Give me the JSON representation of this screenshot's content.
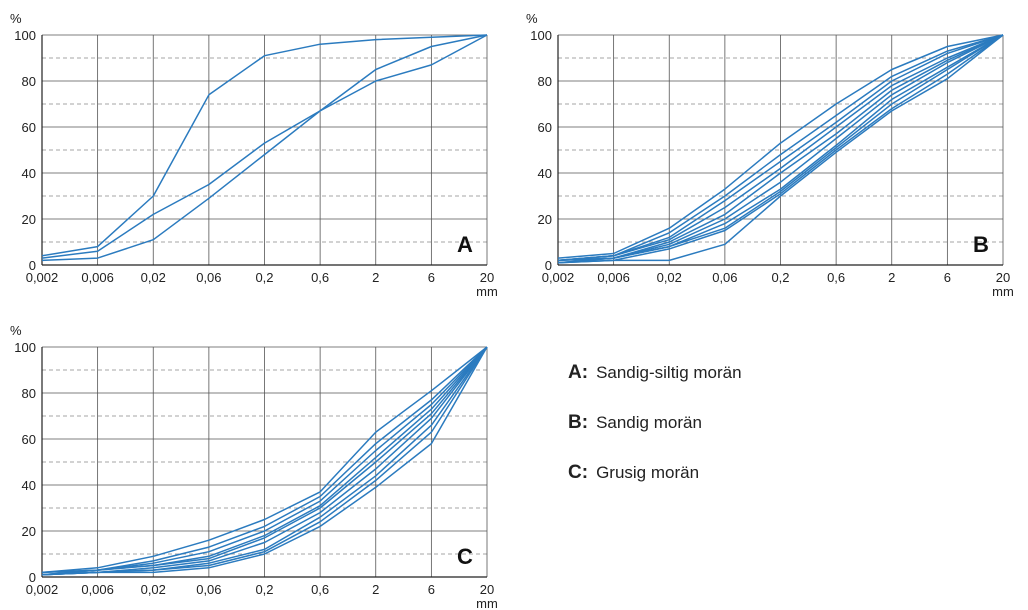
{
  "chart_data": [
    {
      "type": "line",
      "panel_label": "A",
      "categories": [
        "0,002",
        "0,006",
        "0,02",
        "0,06",
        "0,2",
        "0,6",
        "2",
        "6",
        "20"
      ],
      "y_unit": "%",
      "x_unit": "mm",
      "ylim": [
        0,
        100
      ],
      "y_ticks": [
        "0",
        "20",
        "40",
        "60",
        "80",
        "100"
      ],
      "grid": true,
      "series": [
        {
          "values": [
            4,
            8,
            30,
            74,
            91,
            96,
            98,
            99,
            100
          ]
        },
        {
          "values": [
            3,
            6,
            22,
            35,
            53,
            67,
            85,
            95,
            100
          ]
        },
        {
          "values": [
            2,
            3,
            11,
            29,
            48,
            67,
            80,
            87,
            100
          ]
        }
      ]
    },
    {
      "type": "line",
      "panel_label": "B",
      "categories": [
        "0,002",
        "0,006",
        "0,02",
        "0,06",
        "0,2",
        "0,6",
        "2",
        "6",
        "20"
      ],
      "y_unit": "%",
      "x_unit": "mm",
      "ylim": [
        0,
        100
      ],
      "y_ticks": [
        "0",
        "20",
        "40",
        "60",
        "80",
        "100"
      ],
      "grid": true,
      "series": [
        {
          "values": [
            3,
            5,
            16,
            33,
            53,
            70,
            85,
            95,
            100
          ]
        },
        {
          "values": [
            2,
            4,
            14,
            30,
            48,
            65,
            82,
            93,
            100
          ]
        },
        {
          "values": [
            2,
            4,
            12,
            28,
            45,
            62,
            80,
            92,
            100
          ]
        },
        {
          "values": [
            2,
            4,
            11,
            25,
            42,
            60,
            78,
            90,
            100
          ]
        },
        {
          "values": [
            2,
            3,
            10,
            22,
            40,
            57,
            76,
            89,
            100
          ]
        },
        {
          "values": [
            2,
            3,
            9,
            20,
            36,
            55,
            74,
            88,
            100
          ]
        },
        {
          "values": [
            1,
            3,
            8,
            18,
            33,
            52,
            72,
            86,
            100
          ]
        },
        {
          "values": [
            1,
            3,
            8,
            16,
            32,
            51,
            70,
            85,
            100
          ]
        },
        {
          "values": [
            1,
            2,
            7,
            15,
            31,
            50,
            68,
            83,
            100
          ]
        },
        {
          "values": [
            1,
            2,
            2,
            9,
            30,
            49,
            67,
            81,
            100
          ]
        }
      ]
    },
    {
      "type": "line",
      "panel_label": "C",
      "categories": [
        "0,002",
        "0,006",
        "0,02",
        "0,06",
        "0,2",
        "0,6",
        "2",
        "6",
        "20"
      ],
      "y_unit": "%",
      "x_unit": "mm",
      "ylim": [
        0,
        100
      ],
      "y_ticks": [
        "0",
        "20",
        "40",
        "60",
        "80",
        "100"
      ],
      "grid": true,
      "series": [
        {
          "values": [
            2,
            4,
            9,
            16,
            25,
            37,
            63,
            81,
            100
          ]
        },
        {
          "values": [
            2,
            3,
            7,
            13,
            22,
            35,
            58,
            77,
            100
          ]
        },
        {
          "values": [
            2,
            3,
            6,
            11,
            20,
            33,
            55,
            75,
            100
          ]
        },
        {
          "values": [
            1,
            3,
            5,
            9,
            18,
            31,
            52,
            73,
            100
          ]
        },
        {
          "values": [
            1,
            3,
            5,
            8,
            17,
            30,
            50,
            71,
            100
          ]
        },
        {
          "values": [
            1,
            2,
            4,
            7,
            15,
            28,
            47,
            69,
            100
          ]
        },
        {
          "values": [
            1,
            2,
            3,
            6,
            12,
            26,
            44,
            66,
            100
          ]
        },
        {
          "values": [
            1,
            2,
            3,
            5,
            11,
            24,
            42,
            63,
            100
          ]
        },
        {
          "values": [
            1,
            2,
            2,
            4,
            10,
            22,
            39,
            58,
            100
          ]
        }
      ]
    }
  ],
  "legend": [
    {
      "key": "A:",
      "text": "Sandig-siltig morän"
    },
    {
      "key": "B:",
      "text": "Sandig morän"
    },
    {
      "key": "C:",
      "text": "Grusig morän"
    }
  ],
  "colors": {
    "series": "#2b7bbf",
    "grid_solid": "#555555",
    "grid_dashed": "#888888",
    "axis": "#222222"
  }
}
